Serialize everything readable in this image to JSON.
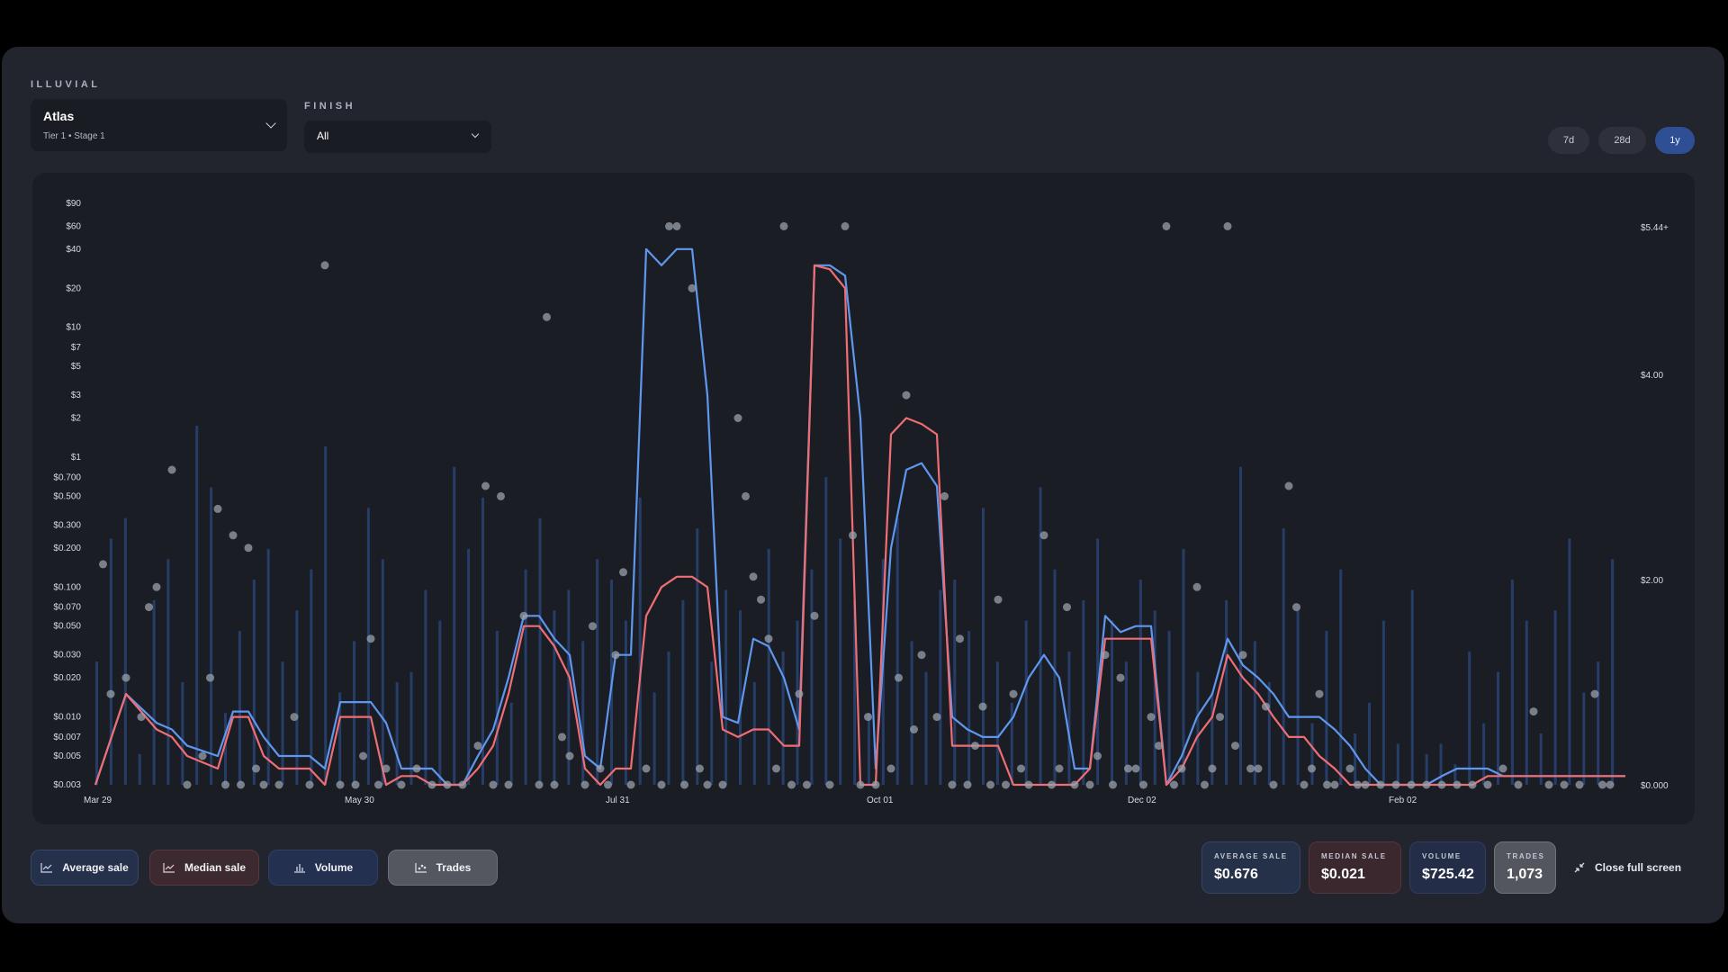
{
  "header": {
    "collection_label": "ILLUVIAL",
    "illuvial_select": {
      "value": "Atlas",
      "subtitle": "Tier 1 • Stage 1"
    },
    "finish_label": "FINISH",
    "finish_select": {
      "value": "All"
    },
    "ranges": [
      "7d",
      "28d",
      "1y"
    ],
    "active_range": "1y"
  },
  "legend": {
    "average_sale": "Average sale",
    "median_sale": "Median sale",
    "volume": "Volume",
    "trades": "Trades"
  },
  "stats": {
    "average_sale": {
      "label": "AVERAGE SALE",
      "value": "$0.676"
    },
    "median_sale": {
      "label": "MEDIAN SALE",
      "value": "$0.021"
    },
    "volume": {
      "label": "VOLUME",
      "value": "$725.42"
    },
    "trades": {
      "label": "TRADES",
      "value": "1,073"
    }
  },
  "close_full_screen": "Close full screen",
  "colors": {
    "average": "#5f97ee",
    "median": "#ef6e74",
    "volume": "#2d4f8e",
    "trades": "#9aa0ab",
    "active_range": "#2f4f94"
  },
  "chart_data": {
    "type": "line",
    "scale": "log",
    "grid": false,
    "legend": "bottom-left",
    "x_tick_labels": [
      "Mar 29",
      "May 30",
      "Jul 31",
      "Oct 01",
      "Dec 02",
      "Feb 02"
    ],
    "y_left_ticks": [
      {
        "value": 90,
        "label": "$90"
      },
      {
        "value": 60,
        "label": "$60"
      },
      {
        "value": 40,
        "label": "$40"
      },
      {
        "value": 20,
        "label": "$20"
      },
      {
        "value": 10,
        "label": "$10"
      },
      {
        "value": 7,
        "label": "$7"
      },
      {
        "value": 5,
        "label": "$5"
      },
      {
        "value": 3,
        "label": "$3"
      },
      {
        "value": 2,
        "label": "$2"
      },
      {
        "value": 1,
        "label": "$1"
      },
      {
        "value": 0.7,
        "label": "$0.700"
      },
      {
        "value": 0.5,
        "label": "$0.500"
      },
      {
        "value": 0.3,
        "label": "$0.300"
      },
      {
        "value": 0.2,
        "label": "$0.200"
      },
      {
        "value": 0.1,
        "label": "$0.100"
      },
      {
        "value": 0.07,
        "label": "$0.070"
      },
      {
        "value": 0.05,
        "label": "$0.050"
      },
      {
        "value": 0.03,
        "label": "$0.030"
      },
      {
        "value": 0.02,
        "label": "$0.020"
      },
      {
        "value": 0.01,
        "label": "$0.010"
      },
      {
        "value": 0.007,
        "label": "$0.007"
      },
      {
        "value": 0.005,
        "label": "$0.005"
      },
      {
        "value": 0.003,
        "label": "$0.003"
      }
    ],
    "y_right_ticks": [
      {
        "value": 5.44,
        "label": "$5.44+"
      },
      {
        "value": 4.0,
        "label": "$4.00"
      },
      {
        "value": 2.0,
        "label": "$2.00"
      },
      {
        "value": 0.0,
        "label": "$0.000"
      }
    ],
    "series": [
      {
        "name": "Average sale",
        "x": [
          0,
          2,
          4,
          5,
          6,
          8,
          9,
          10,
          11,
          12,
          14,
          15,
          16,
          17,
          18,
          19,
          20,
          21,
          22,
          23,
          24,
          25,
          26,
          27,
          28,
          29,
          30,
          31,
          32,
          33,
          34,
          35,
          36,
          37,
          38,
          39,
          40,
          41,
          42,
          43,
          44,
          45,
          46,
          47,
          48,
          49,
          50,
          51,
          52,
          53,
          54,
          55,
          56,
          57,
          58,
          59,
          60,
          61,
          62,
          63,
          64,
          65,
          66,
          67,
          68,
          69,
          70,
          71,
          72,
          73,
          74,
          75,
          76,
          77,
          78,
          79,
          80,
          81,
          82,
          83,
          84,
          85,
          86,
          87,
          88,
          89,
          90,
          91,
          92,
          93,
          94,
          95,
          96,
          97,
          98,
          99,
          100
        ],
        "y": [
          0.003,
          0.015,
          0.009,
          0.008,
          0.006,
          0.005,
          0.011,
          0.011,
          0.007,
          0.005,
          0.005,
          0.004,
          0.013,
          0.013,
          0.013,
          0.009,
          0.004,
          0.004,
          0.004,
          0.003,
          0.003,
          0.005,
          0.008,
          0.02,
          0.06,
          0.06,
          0.04,
          0.03,
          0.005,
          0.004,
          0.03,
          0.03,
          40,
          30,
          40,
          40,
          3.0,
          0.01,
          0.009,
          0.04,
          0.035,
          0.02,
          0.008,
          30,
          30,
          25,
          2.0,
          0.004,
          0.2,
          0.8,
          0.9,
          0.6,
          0.01,
          0.008,
          0.007,
          0.007,
          0.01,
          0.02,
          0.03,
          0.02,
          0.004,
          0.004,
          0.06,
          0.045,
          0.05,
          0.05,
          0.003,
          0.005,
          0.01,
          0.015,
          0.04,
          0.025,
          0.02,
          0.015,
          0.01,
          0.01,
          0.01,
          0.008,
          0.006,
          0.004,
          0.003,
          0.003,
          0.003,
          0.003,
          0.0035,
          0.004,
          0.004,
          0.004,
          0.0035,
          0.0035,
          0.0035,
          0.0035,
          0.0035,
          0.0035,
          0.0035,
          0.0035,
          0.0035
        ]
      },
      {
        "name": "Median sale",
        "x": [
          0,
          2,
          4,
          5,
          6,
          8,
          9,
          10,
          11,
          12,
          14,
          15,
          16,
          17,
          18,
          19,
          20,
          21,
          22,
          23,
          24,
          25,
          26,
          27,
          28,
          29,
          30,
          31,
          32,
          33,
          34,
          35,
          36,
          37,
          38,
          39,
          40,
          41,
          42,
          43,
          44,
          45,
          46,
          47,
          48,
          49,
          50,
          51,
          52,
          53,
          54,
          55,
          56,
          57,
          58,
          59,
          60,
          61,
          62,
          63,
          64,
          65,
          66,
          67,
          68,
          69,
          70,
          71,
          72,
          73,
          74,
          75,
          76,
          77,
          78,
          79,
          80,
          81,
          82,
          83,
          84,
          85,
          86,
          87,
          88,
          89,
          90,
          91,
          92,
          93,
          94,
          95,
          96,
          97,
          98,
          99,
          100
        ],
        "y": [
          0.003,
          0.015,
          0.008,
          0.007,
          0.005,
          0.004,
          0.01,
          0.01,
          0.005,
          0.004,
          0.004,
          0.003,
          0.01,
          0.01,
          0.01,
          0.003,
          0.0035,
          0.0035,
          0.003,
          0.003,
          0.003,
          0.004,
          0.006,
          0.015,
          0.05,
          0.05,
          0.035,
          0.02,
          0.004,
          0.003,
          0.004,
          0.004,
          0.06,
          0.1,
          0.12,
          0.12,
          0.1,
          0.008,
          0.007,
          0.008,
          0.008,
          0.006,
          0.006,
          30,
          28,
          20,
          0.003,
          0.003,
          1.5,
          2.0,
          1.8,
          1.5,
          0.006,
          0.006,
          0.006,
          0.006,
          0.003,
          0.003,
          0.003,
          0.003,
          0.003,
          0.004,
          0.04,
          0.04,
          0.04,
          0.04,
          0.003,
          0.004,
          0.007,
          0.01,
          0.03,
          0.02,
          0.015,
          0.01,
          0.007,
          0.007,
          0.005,
          0.004,
          0.003,
          0.003,
          0.003,
          0.003,
          0.003,
          0.003,
          0.003,
          0.003,
          0.003,
          0.0035,
          0.0035,
          0.0035,
          0.0035,
          0.0035,
          0.0035,
          0.0035,
          0.0035,
          0.0035,
          0.0035
        ]
      }
    ],
    "volume_bars": [
      1.2,
      2.4,
      2.6,
      0.3,
      1.8,
      2.2,
      1.0,
      3.5,
      2.9,
      0.7,
      1.5,
      2.0,
      2.3,
      1.2,
      1.7,
      2.1,
      3.3,
      0.9,
      1.4,
      2.7,
      2.2,
      1.0,
      1.1,
      1.9,
      1.6,
      3.1,
      2.3,
      2.8,
      1.5,
      0.8,
      2.1,
      2.6,
      1.7,
      1.9,
      1.4,
      2.2,
      2.0,
      1.6,
      2.8,
      0.9,
      1.3,
      1.8,
      2.5,
      1.2,
      1.9,
      1.7,
      1.0,
      2.3,
      1.3,
      1.6,
      2.1,
      3.0,
      2.4,
      1.8,
      0.7,
      2.2,
      2.6,
      1.4,
      1.1,
      1.9,
      2.0,
      1.5,
      2.7,
      1.2,
      0.8,
      1.6,
      2.9,
      2.1,
      1.3,
      1.8,
      2.4,
      1.6,
      1.2,
      2.0,
      1.7,
      1.5,
      2.3,
      1.1,
      0.9,
      1.8,
      3.1,
      1.4,
      1.0,
      2.5,
      1.7,
      0.6,
      1.5,
      2.1,
      0.5,
      0.8,
      1.6,
      0.4,
      1.9,
      0.3,
      0.4,
      0.2,
      1.3,
      0.6,
      1.1,
      2.0,
      1.6,
      0.5,
      1.7,
      2.4,
      0.9,
      1.2,
      2.2
    ],
    "trades": [
      [
        0.5,
        0.15
      ],
      [
        1,
        0.015
      ],
      [
        2,
        0.02
      ],
      [
        3,
        0.01
      ],
      [
        3.5,
        0.07
      ],
      [
        4,
        0.1
      ],
      [
        5,
        0.8
      ],
      [
        6,
        0.003
      ],
      [
        7,
        0.005
      ],
      [
        7.5,
        0.02
      ],
      [
        8,
        0.4
      ],
      [
        8.5,
        0.003
      ],
      [
        9,
        0.25
      ],
      [
        9.5,
        0.003
      ],
      [
        10,
        0.2
      ],
      [
        10.5,
        0.004
      ],
      [
        11,
        0.003
      ],
      [
        12,
        0.003
      ],
      [
        13,
        0.01
      ],
      [
        14,
        0.003
      ],
      [
        15,
        30
      ],
      [
        16,
        0.003
      ],
      [
        17,
        0.003
      ],
      [
        17.5,
        0.005
      ],
      [
        18,
        0.04
      ],
      [
        18.5,
        0.003
      ],
      [
        19,
        0.004
      ],
      [
        20,
        0.003
      ],
      [
        21,
        0.004
      ],
      [
        22,
        0.003
      ],
      [
        23,
        0.003
      ],
      [
        24,
        0.003
      ],
      [
        25,
        0.006
      ],
      [
        25.5,
        0.6
      ],
      [
        26,
        0.003
      ],
      [
        26.5,
        0.5
      ],
      [
        27,
        0.003
      ],
      [
        28,
        0.06
      ],
      [
        29,
        0.003
      ],
      [
        29.5,
        12
      ],
      [
        30,
        0.003
      ],
      [
        30.5,
        0.007
      ],
      [
        31,
        0.005
      ],
      [
        32,
        0.003
      ],
      [
        32.5,
        0.05
      ],
      [
        33,
        0.004
      ],
      [
        33.5,
        0.003
      ],
      [
        34,
        0.03
      ],
      [
        34.5,
        0.13
      ],
      [
        35,
        0.003
      ],
      [
        36,
        0.004
      ],
      [
        37,
        0.003
      ],
      [
        37.5,
        60
      ],
      [
        38,
        60
      ],
      [
        38.5,
        0.003
      ],
      [
        39,
        20
      ],
      [
        39.5,
        0.004
      ],
      [
        40,
        0.003
      ],
      [
        41,
        0.003
      ],
      [
        42,
        2
      ],
      [
        42.5,
        0.5
      ],
      [
        43,
        0.12
      ],
      [
        43.5,
        0.08
      ],
      [
        44,
        0.04
      ],
      [
        44.5,
        0.004
      ],
      [
        45,
        60
      ],
      [
        45.5,
        0.003
      ],
      [
        46,
        0.015
      ],
      [
        46.5,
        0.003
      ],
      [
        47,
        0.06
      ],
      [
        48,
        0.003
      ],
      [
        49,
        60
      ],
      [
        49.5,
        0.25
      ],
      [
        50,
        0.003
      ],
      [
        50.5,
        0.01
      ],
      [
        51,
        0.003
      ],
      [
        52,
        0.004
      ],
      [
        52.5,
        0.02
      ],
      [
        53,
        3
      ],
      [
        53.5,
        0.008
      ],
      [
        54,
        0.03
      ],
      [
        55,
        0.01
      ],
      [
        55.5,
        0.5
      ],
      [
        56,
        0.003
      ],
      [
        56.5,
        0.04
      ],
      [
        57,
        0.003
      ],
      [
        57.5,
        0.006
      ],
      [
        58,
        0.012
      ],
      [
        58.5,
        0.003
      ],
      [
        59,
        0.08
      ],
      [
        59.5,
        0.003
      ],
      [
        60,
        0.015
      ],
      [
        60.5,
        0.004
      ],
      [
        61,
        0.003
      ],
      [
        62,
        0.25
      ],
      [
        62.5,
        0.003
      ],
      [
        63,
        0.004
      ],
      [
        63.5,
        0.07
      ],
      [
        64,
        0.003
      ],
      [
        65,
        0.003
      ],
      [
        65.5,
        0.005
      ],
      [
        66,
        0.03
      ],
      [
        66.5,
        0.003
      ],
      [
        67,
        0.02
      ],
      [
        67.5,
        0.004
      ],
      [
        68,
        0.004
      ],
      [
        68.5,
        0.003
      ],
      [
        69,
        0.01
      ],
      [
        69.5,
        0.006
      ],
      [
        70,
        60
      ],
      [
        70.5,
        0.003
      ],
      [
        71,
        0.004
      ],
      [
        72,
        0.1
      ],
      [
        72.5,
        0.003
      ],
      [
        73,
        0.004
      ],
      [
        73.5,
        0.01
      ],
      [
        74,
        60
      ],
      [
        74.5,
        0.006
      ],
      [
        75,
        0.03
      ],
      [
        75.5,
        0.004
      ],
      [
        76,
        0.004
      ],
      [
        76.5,
        0.012
      ],
      [
        77,
        0.003
      ],
      [
        78,
        0.6
      ],
      [
        78.5,
        0.07
      ],
      [
        79,
        0.003
      ],
      [
        79.5,
        0.004
      ],
      [
        80,
        0.015
      ],
      [
        80.5,
        0.003
      ],
      [
        81,
        0.003
      ],
      [
        82,
        0.004
      ],
      [
        82.5,
        0.003
      ],
      [
        83,
        0.003
      ],
      [
        84,
        0.003
      ],
      [
        85,
        0.003
      ],
      [
        86,
        0.003
      ],
      [
        87,
        0.003
      ],
      [
        88,
        0.003
      ],
      [
        89,
        0.003
      ],
      [
        90,
        0.003
      ],
      [
        91,
        0.003
      ],
      [
        92,
        0.004
      ],
      [
        93,
        0.003
      ],
      [
        94,
        0.011
      ],
      [
        95,
        0.003
      ],
      [
        96,
        0.003
      ],
      [
        97,
        0.003
      ],
      [
        98,
        0.015
      ],
      [
        98.5,
        0.003
      ],
      [
        99,
        0.003
      ]
    ]
  }
}
